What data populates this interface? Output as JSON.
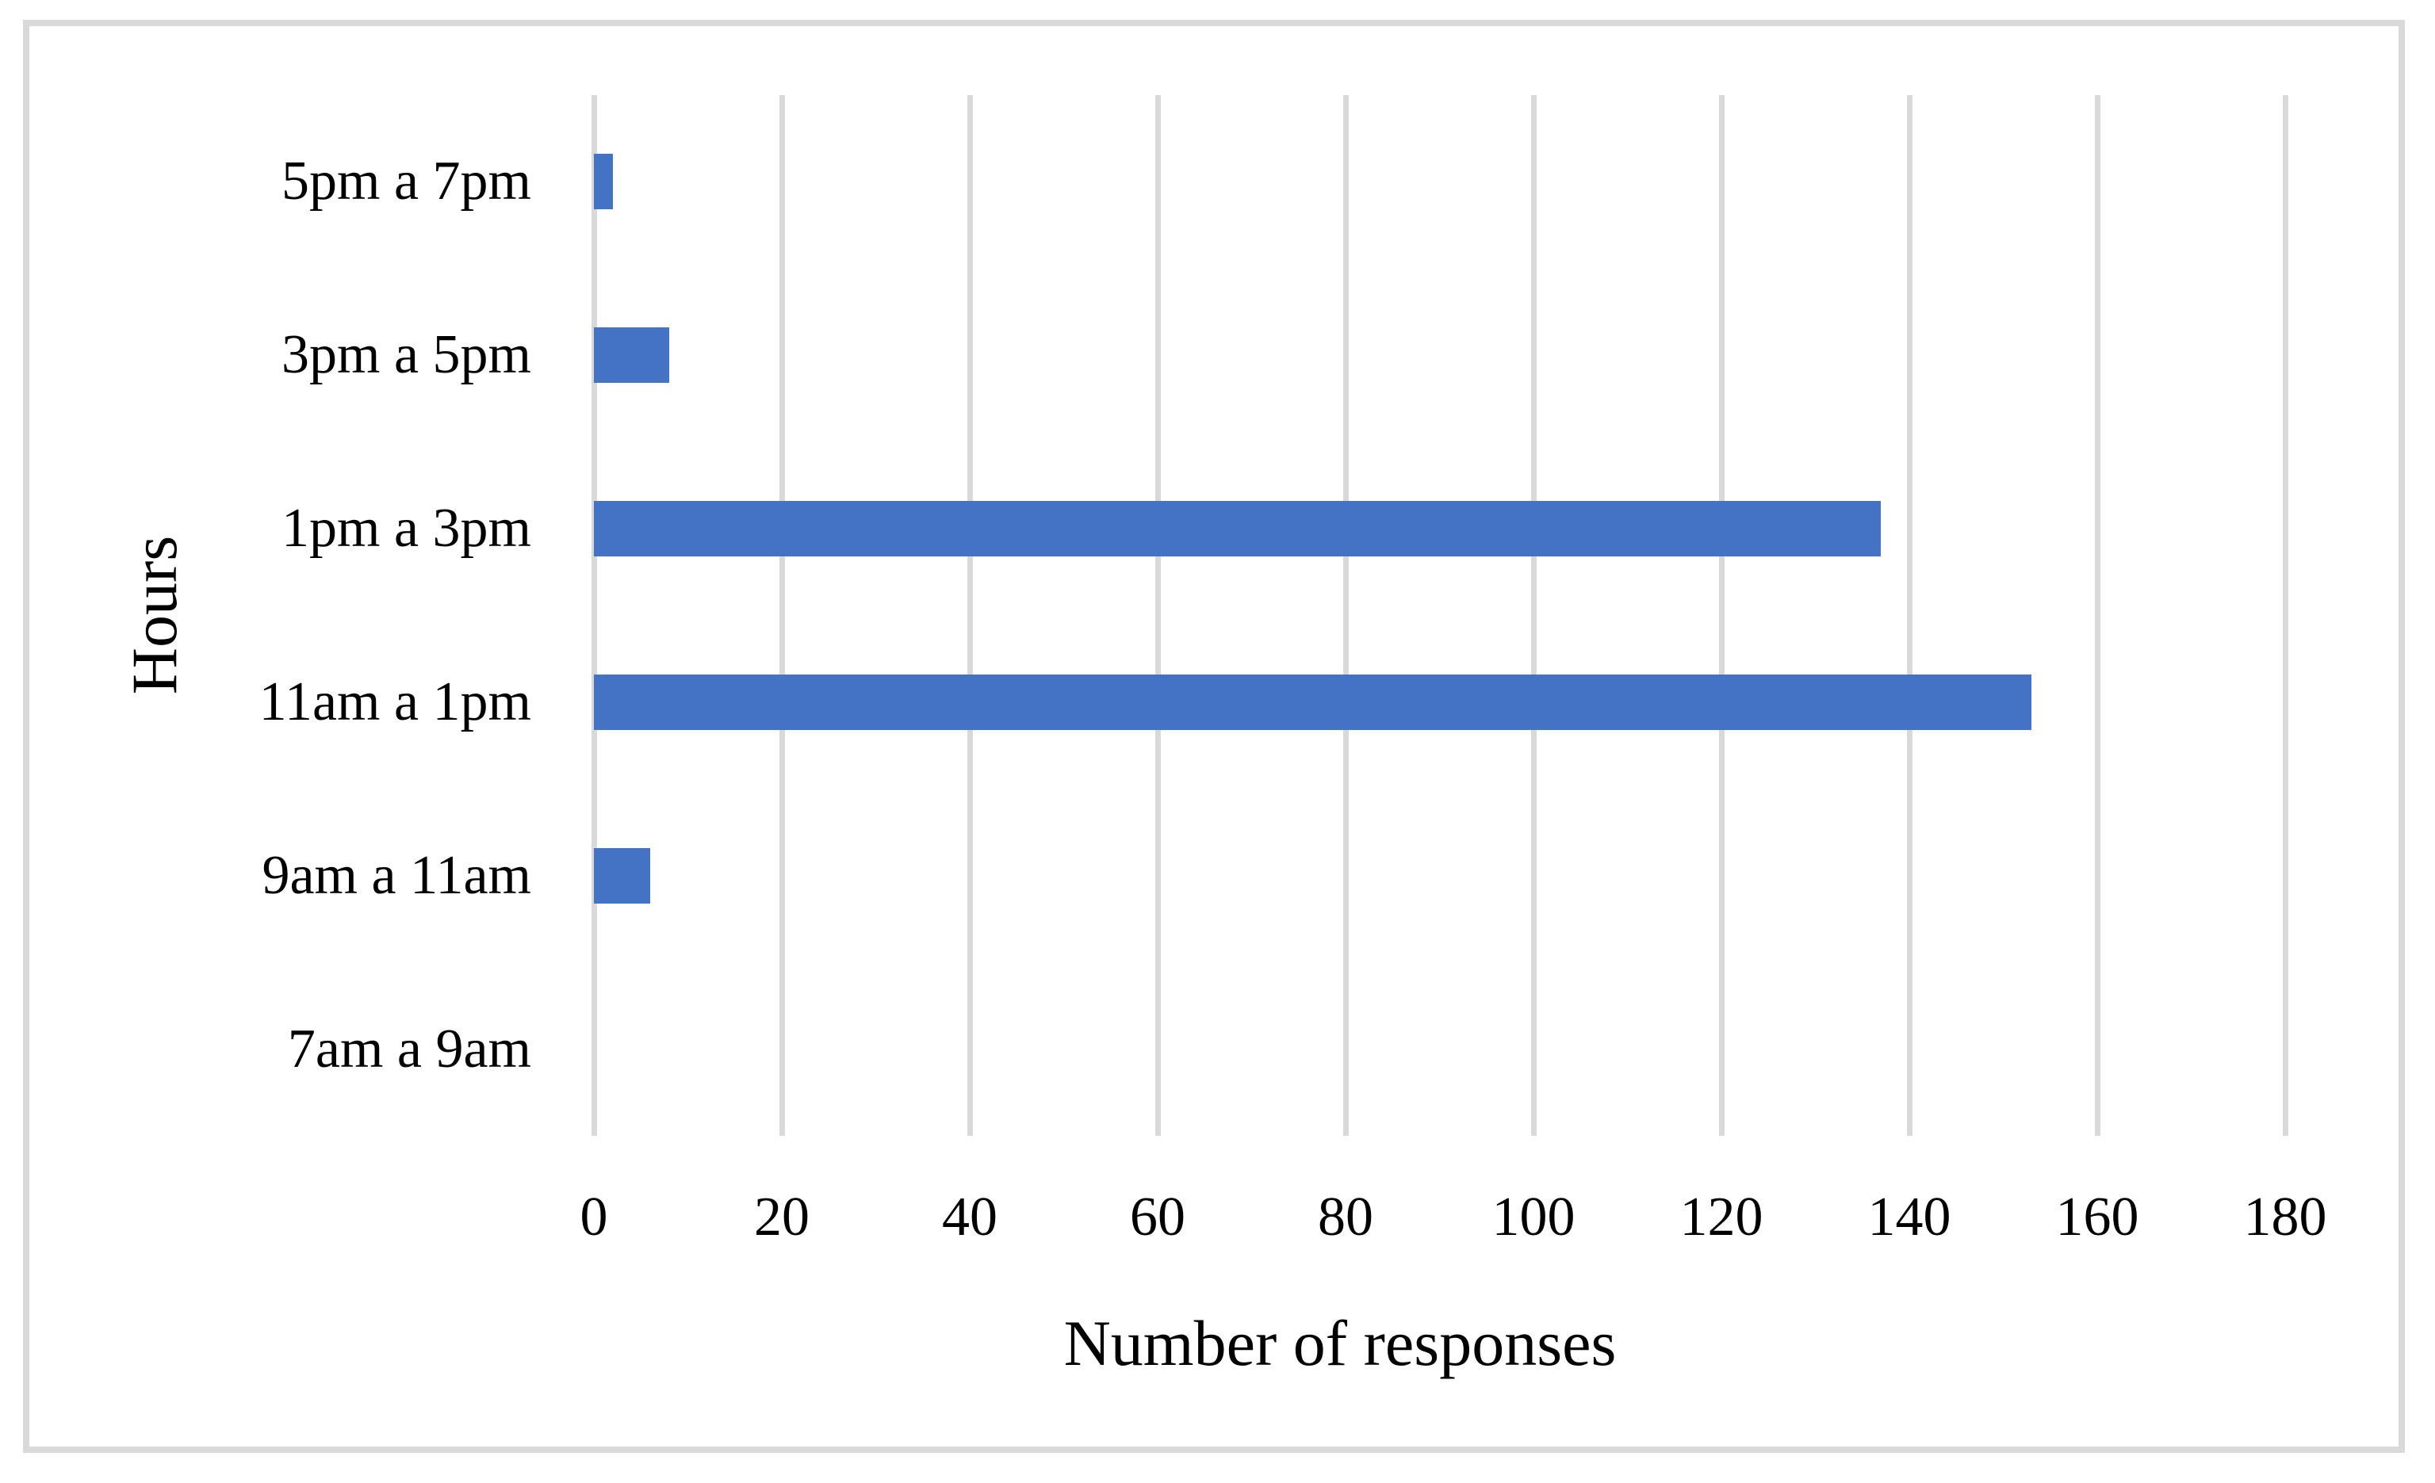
{
  "chart_data": {
    "type": "bar",
    "orientation": "horizontal",
    "xlabel": "Number of responses",
    "ylabel": "Hours",
    "categories": [
      "5pm a 7pm",
      "3pm a 5pm",
      "1pm a 3pm",
      "11am a 1pm",
      "9am a 11am",
      "7am a 9am"
    ],
    "values": [
      2,
      8,
      137,
      153,
      6,
      0
    ],
    "xlim": [
      0,
      180
    ],
    "xticks": [
      0,
      20,
      40,
      60,
      80,
      100,
      120,
      140,
      160,
      180
    ],
    "grid": "vertical-gridlines-on",
    "legend": "none",
    "colors": {
      "bar": "#4472C4",
      "gridline": "#D9D9D9",
      "frame_border": "#D9D9D9",
      "text": "#000000",
      "background": "#FFFFFF"
    }
  }
}
